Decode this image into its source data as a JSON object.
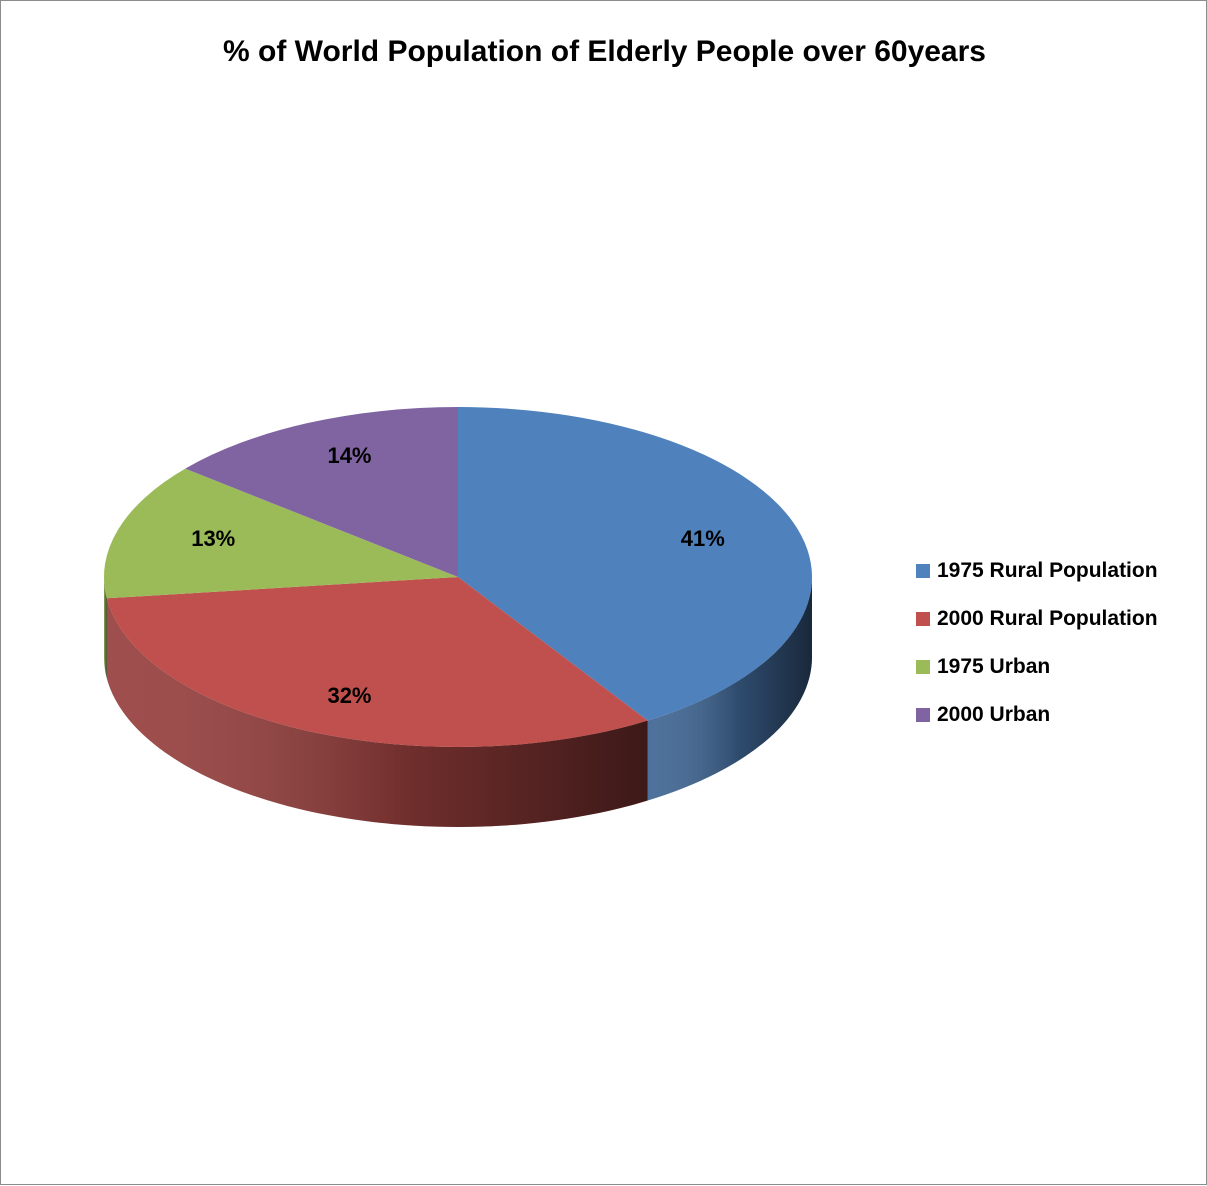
{
  "chart_data": {
    "type": "pie",
    "title": "% of World Population of Elderly People over 60years",
    "style": "3d",
    "legend_position": "right",
    "slices": [
      {
        "name": "1975 Rural Population",
        "value": 41,
        "label": "41%",
        "color": "#4F81BD"
      },
      {
        "name": "2000 Rural Population",
        "value": 32,
        "label": "32%",
        "color": "#C0504D"
      },
      {
        "name": "1975 Urban",
        "value": 13,
        "label": "13%",
        "color": "#9BBB59"
      },
      {
        "name": "2000 Urban",
        "value": 14,
        "label": "14%",
        "color": "#8064A2"
      }
    ]
  }
}
